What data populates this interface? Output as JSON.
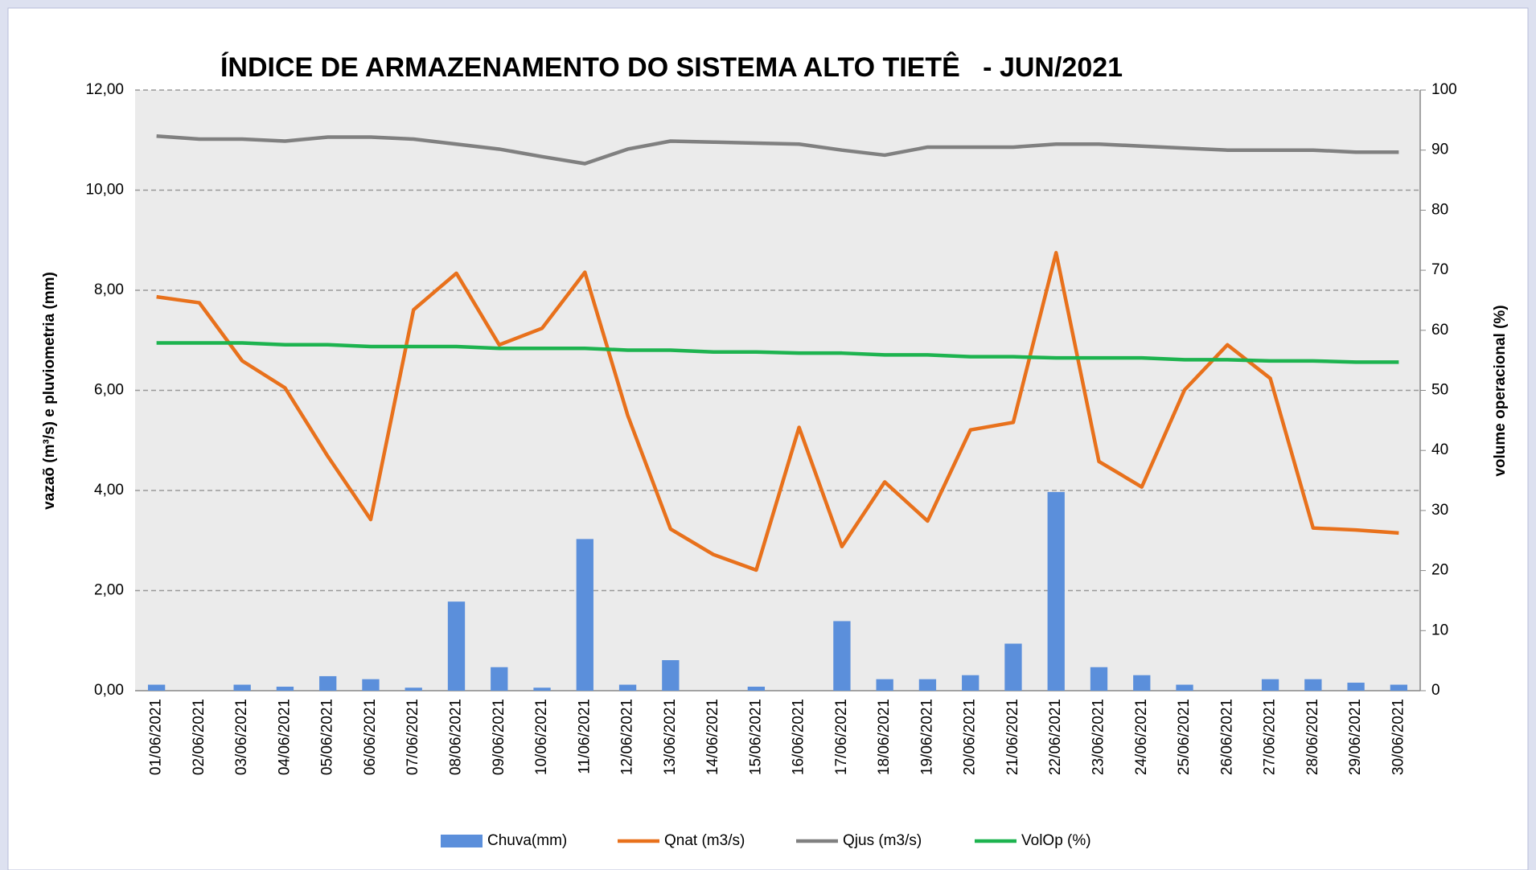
{
  "chart_data": {
    "type": "combo",
    "title": "ÍNDICE DE ARMAZENAMENTO DO SISTEMA ALTO TIETÊ   - JUN/2021",
    "ylabel": "vazaõ (m³/s) e pluviometria (mm)",
    "y2label": "volume operacional (%)",
    "categories": [
      "01/06/2021",
      "02/06/2021",
      "03/06/2021",
      "04/06/2021",
      "05/06/2021",
      "06/06/2021",
      "07/06/2021",
      "08/06/2021",
      "09/06/2021",
      "10/06/2021",
      "11/06/2021",
      "12/06/2021",
      "13/06/2021",
      "14/06/2021",
      "15/06/2021",
      "16/06/2021",
      "17/06/2021",
      "18/06/2021",
      "19/06/2021",
      "20/06/2021",
      "21/06/2021",
      "22/06/2021",
      "23/06/2021",
      "24/06/2021",
      "25/06/2021",
      "26/06/2021",
      "27/06/2021",
      "28/06/2021",
      "29/06/2021",
      "30/06/2021"
    ],
    "series": [
      {
        "name": "Chuva(mm)",
        "type": "bar",
        "color": "#5b8fdb",
        "values": [
          0.12,
          0,
          0.12,
          0.08,
          0.29,
          0.23,
          0.06,
          1.78,
          0.47,
          0.06,
          3.03,
          0.12,
          0.61,
          0,
          0.08,
          0,
          1.39,
          0.23,
          0.23,
          0.31,
          0.94,
          3.97,
          0.47,
          0.31,
          0.12,
          0,
          0.23,
          0.23,
          0.16,
          0.12
        ]
      },
      {
        "name": "Qnat (m3/s)",
        "type": "line",
        "color": "#e8711c",
        "values": [
          7.87,
          7.75,
          6.59,
          6.05,
          4.68,
          3.42,
          7.61,
          8.34,
          6.91,
          7.24,
          8.36,
          5.5,
          3.23,
          2.72,
          2.41,
          5.26,
          2.88,
          4.17,
          3.39,
          5.21,
          5.36,
          8.75,
          4.58,
          4.07,
          6.01,
          6.91,
          6.24,
          3.25,
          3.21,
          3.15
        ]
      },
      {
        "name": "Qjus (m3/s)",
        "type": "line",
        "color": "#808080",
        "values": [
          11.08,
          11.02,
          11.02,
          10.98,
          11.06,
          11.06,
          11.02,
          10.92,
          10.82,
          10.67,
          10.53,
          10.82,
          10.98,
          10.96,
          10.94,
          10.92,
          10.8,
          10.7,
          10.86,
          10.86,
          10.86,
          10.92,
          10.92,
          10.88,
          10.84,
          10.8,
          10.8,
          10.8,
          10.76,
          10.76
        ]
      },
      {
        "name": "VolOp (%)",
        "type": "line",
        "axis": "y2",
        "color": "#1db34f",
        "values": [
          57.9,
          57.9,
          57.9,
          57.6,
          57.6,
          57.3,
          57.3,
          57.3,
          57.0,
          57.0,
          57.0,
          56.7,
          56.7,
          56.4,
          56.4,
          56.2,
          56.2,
          55.9,
          55.9,
          55.6,
          55.6,
          55.4,
          55.4,
          55.4,
          55.1,
          55.1,
          54.9,
          54.9,
          54.7,
          54.7
        ]
      }
    ],
    "ylim": [
      0,
      12
    ],
    "yticks": [
      {
        "value": 0,
        "label": "0,00"
      },
      {
        "value": 2,
        "label": "2,00"
      },
      {
        "value": 4,
        "label": "4,00"
      },
      {
        "value": 6,
        "label": "6,00"
      },
      {
        "value": 8,
        "label": "8,00"
      },
      {
        "value": 10,
        "label": "10,00"
      },
      {
        "value": 12,
        "label": "12,00"
      }
    ],
    "y2lim": [
      0,
      100
    ],
    "y2ticks": [
      0,
      10,
      20,
      30,
      40,
      50,
      60,
      70,
      80,
      90,
      100
    ],
    "grid": true,
    "legend": "bottom"
  }
}
